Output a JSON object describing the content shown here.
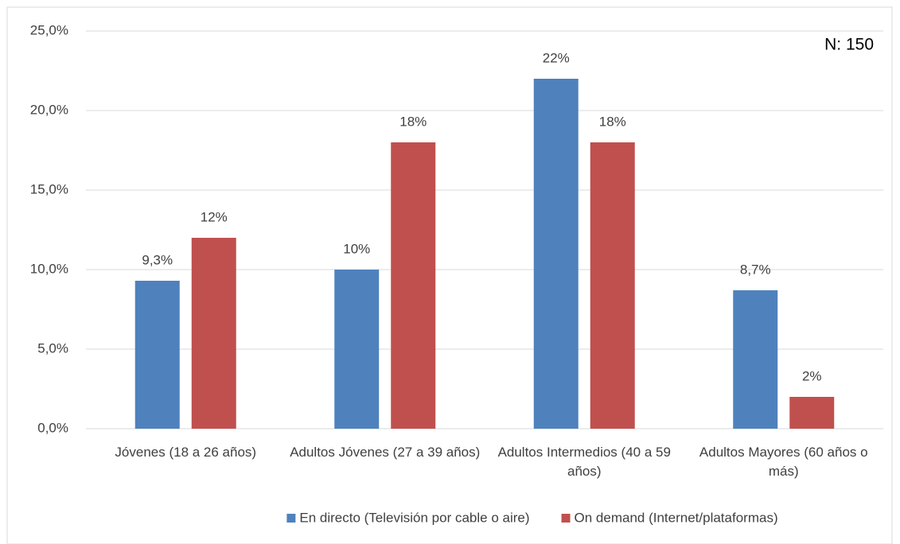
{
  "chart_data": {
    "type": "bar",
    "categories": [
      "Jóvenes (18 a 26 años)",
      "Adultos Jóvenes (27 a 39 años)",
      "Adultos Intermedios (40 a 59 años)",
      "Adultos Mayores (60 años o más)"
    ],
    "series": [
      {
        "name": "En directo (Televisión por cable o aire)",
        "color": "#4f81bd",
        "values": [
          9.3,
          10,
          22,
          8.7
        ],
        "value_labels": [
          "9,3%",
          "10%",
          "22%",
          "8,7%"
        ]
      },
      {
        "name": "On demand (Internet/plataformas)",
        "color": "#c0504d",
        "values": [
          12,
          18,
          18,
          2
        ],
        "value_labels": [
          "12%",
          "18%",
          "18%",
          "2%"
        ]
      }
    ],
    "ylim": [
      0,
      25
    ],
    "yticks": [
      {
        "value": 0,
        "label": "0,0%"
      },
      {
        "value": 5,
        "label": "5,0%"
      },
      {
        "value": 10,
        "label": "10,0%"
      },
      {
        "value": 15,
        "label": "15,0%"
      },
      {
        "value": 20,
        "label": "20,0%"
      },
      {
        "value": 25,
        "label": "25,0%"
      }
    ],
    "grid": true,
    "legend": "bottom",
    "annotation": "N: 150"
  }
}
